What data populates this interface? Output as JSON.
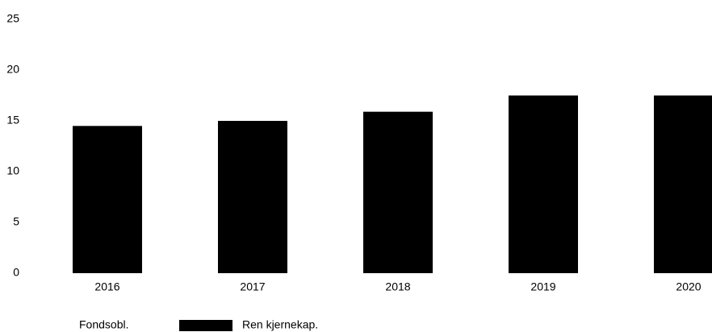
{
  "chart_data": {
    "type": "bar",
    "categories": [
      "2016",
      "2017",
      "2018",
      "2019",
      "2020"
    ],
    "series": [
      {
        "name": "Fondsobl.",
        "color": "#ffffff",
        "values": [
          0,
          0,
          0,
          0,
          0
        ]
      },
      {
        "name": "Ren kjernekap.",
        "color": "#000000",
        "values": [
          14.5,
          15.0,
          15.9,
          17.5,
          17.5
        ]
      }
    ],
    "stacked": true,
    "ylim": [
      0,
      25
    ],
    "yticks": [
      0,
      5,
      10,
      15,
      20,
      25
    ],
    "grid": false,
    "legend": "bottom"
  }
}
